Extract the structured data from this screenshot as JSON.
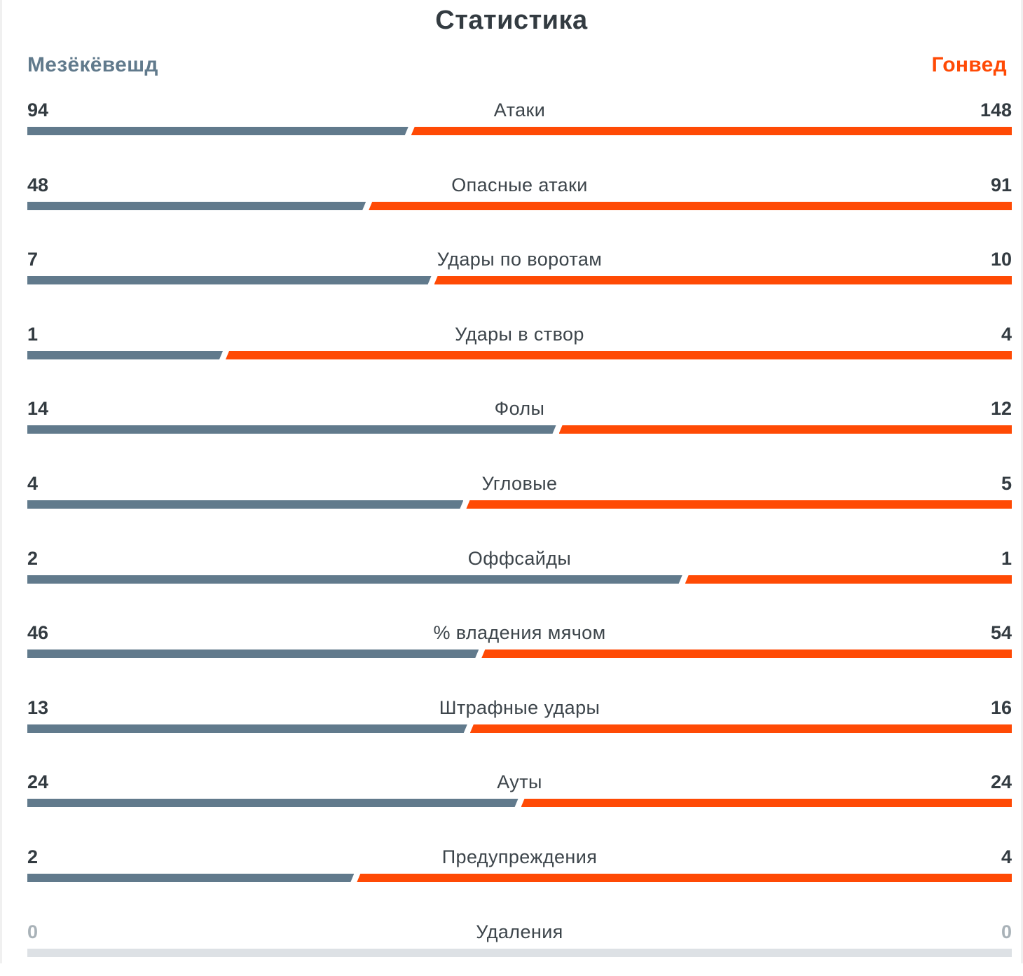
{
  "title": "Статистика",
  "teams": {
    "home": "Мезёкёвешд",
    "away": "Гонвед"
  },
  "colors": {
    "home": "#617a8c",
    "away": "#ff4a05",
    "empty": "#dde1e5"
  },
  "stats": [
    {
      "label": "Атаки",
      "home": "94",
      "away": "148"
    },
    {
      "label": "Опасные атаки",
      "home": "48",
      "away": "91"
    },
    {
      "label": "Удары по воротам",
      "home": "7",
      "away": "10"
    },
    {
      "label": "Удары в створ",
      "home": "1",
      "away": "4"
    },
    {
      "label": "Фолы",
      "home": "14",
      "away": "12"
    },
    {
      "label": "Угловые",
      "home": "4",
      "away": "5"
    },
    {
      "label": "Оффсайды",
      "home": "2",
      "away": "1"
    },
    {
      "label": "% владения мячом",
      "home": "46",
      "away": "54"
    },
    {
      "label": "Штрафные удары",
      "home": "13",
      "away": "16"
    },
    {
      "label": "Ауты",
      "home": "24",
      "away": "24"
    },
    {
      "label": "Предупреждения",
      "home": "2",
      "away": "4"
    },
    {
      "label": "Удаления",
      "home": "0",
      "away": "0"
    }
  ]
}
